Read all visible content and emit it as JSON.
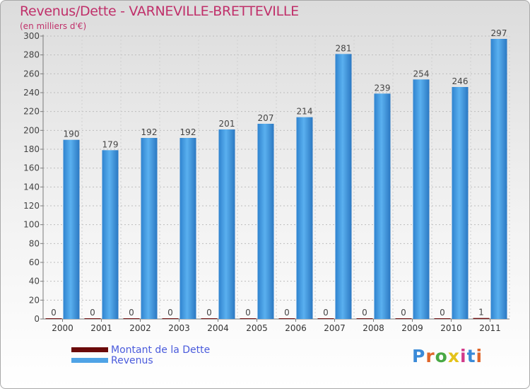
{
  "header": {
    "title": "Revenus/Dette - VARNEVILLE-BRETTEVILLE",
    "subtitle": "(en milliers d'€)"
  },
  "legend": {
    "items": [
      {
        "label": "Montant de la Dette",
        "color": "#6b0a0a"
      },
      {
        "label": "Revenus",
        "color": "#4fa3e6"
      }
    ]
  },
  "logo": {
    "text": "Proxiti",
    "letters": [
      "P",
      "r",
      "o",
      "x",
      "i",
      "t",
      "i"
    ],
    "colors": [
      "#3a8ad8",
      "#e0662a",
      "#48a844",
      "#e4c21a",
      "#d23a8a",
      "#3a8ad8",
      "#e0662a"
    ]
  },
  "chart_data": {
    "type": "bar",
    "categories": [
      "2000",
      "2001",
      "2002",
      "2003",
      "2004",
      "2005",
      "2006",
      "2007",
      "2008",
      "2009",
      "2010",
      "2011"
    ],
    "series": [
      {
        "name": "Montant de la Dette",
        "values": [
          0,
          0,
          0,
          0,
          0,
          0,
          0,
          0,
          0,
          0,
          0,
          1
        ],
        "color": "#6b0a0a"
      },
      {
        "name": "Revenus",
        "values": [
          190,
          179,
          192,
          192,
          201,
          207,
          214,
          281,
          239,
          254,
          246,
          297
        ],
        "color": "#4fa3e6"
      }
    ],
    "ylim": [
      0,
      300
    ],
    "yticks": [
      0,
      20,
      40,
      60,
      80,
      100,
      120,
      140,
      160,
      180,
      200,
      220,
      240,
      260,
      280,
      300
    ],
    "grid": true,
    "legend_position": "bottom-left"
  }
}
